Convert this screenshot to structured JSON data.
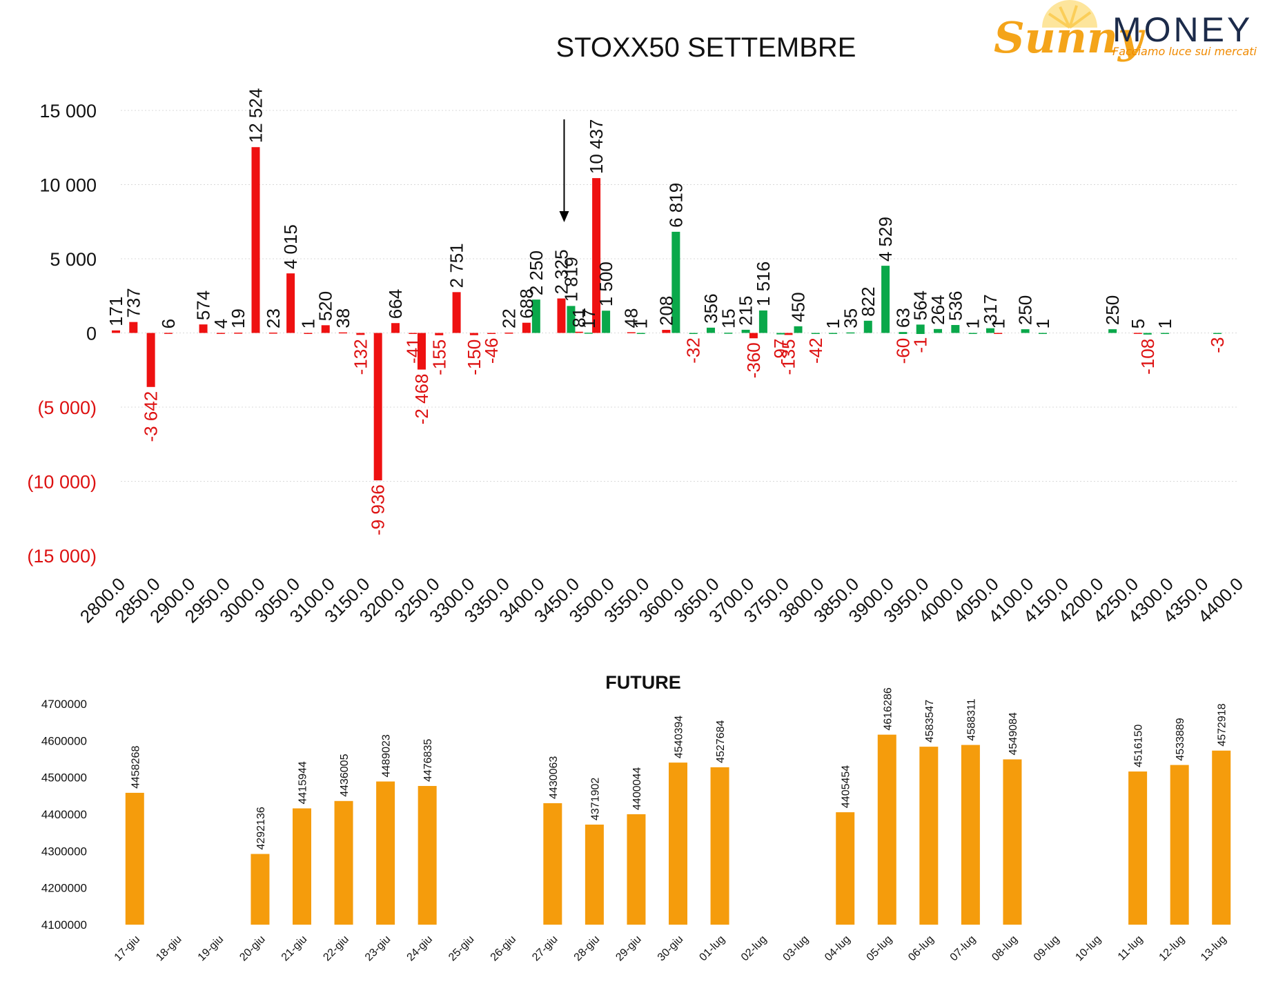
{
  "logo": {
    "brand_part1": "Sunny",
    "brand_part2": "MONEY",
    "tagline": "Facciamo luce sui mercati"
  },
  "colors": {
    "call": "#ee1111",
    "put": "#0aa84a",
    "future": "#f59c0c",
    "negative_text": "#dd1111",
    "text": "#111111"
  },
  "chart_data": [
    {
      "type": "bar",
      "title": "STOXX50 SETTEMBRE",
      "x": [
        2800,
        2825,
        2850,
        2875,
        2900,
        2925,
        2950,
        2975,
        3000,
        3025,
        3050,
        3075,
        3100,
        3125,
        3150,
        3175,
        3200,
        3225,
        3250,
        3275,
        3300,
        3325,
        3350,
        3375,
        3400,
        3425,
        3450,
        3475,
        3500,
        3525,
        3550,
        3575,
        3600,
        3625,
        3650,
        3675,
        3700,
        3725,
        3750,
        3775,
        3800,
        3825,
        3850,
        3875,
        3900,
        3925,
        3950,
        3975,
        4000,
        4025,
        4050,
        4075,
        4100,
        4125,
        4150,
        4175,
        4200,
        4225,
        4250,
        4275,
        4300,
        4325,
        4350,
        4375,
        4400
      ],
      "x_tick_labels": [
        "2800.0",
        "2850.0",
        "2900.0",
        "2950.0",
        "3000.0",
        "3050.0",
        "3100.0",
        "3150.0",
        "3200.0",
        "3250.0",
        "3300.0",
        "3350.0",
        "3400.0",
        "3450.0",
        "3500.0",
        "3550.0",
        "3600.0",
        "3650.0",
        "3700.0",
        "3750.0",
        "3800.0",
        "3850.0",
        "3900.0",
        "3950.0",
        "4000.0",
        "4050.0",
        "4100.0",
        "4150.0",
        "4200.0",
        "4250.0",
        "4300.0",
        "4350.0",
        "4400.0"
      ],
      "ylim": [
        -15000,
        15000
      ],
      "y_ticks": [
        15000,
        10000,
        5000,
        0,
        -5000,
        -10000,
        -15000
      ],
      "y_tick_labels": [
        "15 000",
        "10 000",
        "5 000",
        "0",
        "(5 000)",
        "(10 000)",
        "(15 000)"
      ],
      "grid": true,
      "arrow_at_x": 3437.5,
      "series": [
        {
          "color": "#ee1111",
          "points": [
            {
              "x": 2800,
              "y": 171,
              "label": "171"
            },
            {
              "x": 2825,
              "y": 737,
              "label": "737"
            },
            {
              "x": 2850,
              "y": -3642,
              "label": "-3 642"
            },
            {
              "x": 2875,
              "y": 6,
              "label": "6"
            },
            {
              "x": 2925,
              "y": 574,
              "label": "574"
            },
            {
              "x": 2950,
              "y": 4,
              "label": "4"
            },
            {
              "x": 2975,
              "y": 19,
              "label": "19"
            },
            {
              "x": 3000,
              "y": 12524,
              "label": "12 524"
            },
            {
              "x": 3025,
              "y": 23,
              "label": "23"
            },
            {
              "x": 3050,
              "y": 4015,
              "label": "4 015"
            },
            {
              "x": 3075,
              "y": 1,
              "label": "1"
            },
            {
              "x": 3100,
              "y": 520,
              "label": "520"
            },
            {
              "x": 3125,
              "y": 38,
              "label": "38"
            },
            {
              "x": 3150,
              "y": -132,
              "label": "-132"
            },
            {
              "x": 3175,
              "y": -9936,
              "label": "-9 936"
            },
            {
              "x": 3200,
              "y": 664,
              "label": "664"
            },
            {
              "x": 3225,
              "y": -41,
              "label": "-41"
            },
            {
              "x": 3237.5,
              "y": -2468,
              "label": "-2 468"
            },
            {
              "x": 3262.5,
              "y": -155,
              "label": "-155"
            },
            {
              "x": 3287.5,
              "y": 2751,
              "label": "2 751"
            },
            {
              "x": 3312.5,
              "y": -150,
              "label": "-150"
            },
            {
              "x": 3337.5,
              "y": -46,
              "label": "-46"
            },
            {
              "x": 3362.5,
              "y": 22,
              "label": "22"
            },
            {
              "x": 3387.5,
              "y": 688,
              "label": "688"
            },
            {
              "x": 3437.5,
              "y": 2325,
              "label": "2 325"
            },
            {
              "x": 3462.5,
              "y": 81,
              "label": "81"
            },
            {
              "x": 3487.5,
              "y": 10437,
              "label": "10 437"
            },
            {
              "x": 3537.5,
              "y": 48,
              "label": "48"
            },
            {
              "x": 3587.5,
              "y": 208,
              "label": "208"
            },
            {
              "x": 3712.5,
              "y": -360,
              "label": "-360"
            },
            {
              "x": 3762.5,
              "y": -135,
              "label": "-135"
            },
            {
              "x": 4062.5,
              "y": 1,
              "label": "1"
            },
            {
              "x": 4262.5,
              "y": 5,
              "label": "5"
            }
          ]
        },
        {
          "color": "#0aa84a",
          "points": [
            {
              "x": 3387.5,
              "y": 2250,
              "label": "2 250"
            },
            {
              "x": 3437.5,
              "y": 1819,
              "label": "1 819"
            },
            {
              "x": 3462.5,
              "y": 17,
              "label": "17"
            },
            {
              "x": 3487.5,
              "y": 1500,
              "label": "1 500"
            },
            {
              "x": 3537.5,
              "y": 1,
              "label": "1"
            },
            {
              "x": 3587.5,
              "y": 6819,
              "label": "6 819"
            },
            {
              "x": 3612.5,
              "y": -32,
              "label": "-32"
            },
            {
              "x": 3637.5,
              "y": 356,
              "label": "356"
            },
            {
              "x": 3662.5,
              "y": 15,
              "label": "15"
            },
            {
              "x": 3687.5,
              "y": 215,
              "label": "215"
            },
            {
              "x": 3712.5,
              "y": 1516,
              "label": "1 516"
            },
            {
              "x": 3737.5,
              "y": -97,
              "label": "-97"
            },
            {
              "x": 3762.5,
              "y": 450,
              "label": "450"
            },
            {
              "x": 3787.5,
              "y": -42,
              "label": "-42"
            },
            {
              "x": 3812.5,
              "y": 1,
              "label": "1"
            },
            {
              "x": 3837.5,
              "y": 35,
              "label": "35"
            },
            {
              "x": 3862.5,
              "y": 822,
              "label": "822"
            },
            {
              "x": 3887.5,
              "y": 4529,
              "label": "4 529"
            },
            {
              "x": 3912.5,
              "y": -60,
              "label": "-60"
            },
            {
              "x": 3912.5,
              "y": 63,
              "label": "63"
            },
            {
              "x": 3937.5,
              "y": -1,
              "label": "-1"
            },
            {
              "x": 3937.5,
              "y": 564,
              "label": "564"
            },
            {
              "x": 3962.5,
              "y": 264,
              "label": "264"
            },
            {
              "x": 3987.5,
              "y": 536,
              "label": "536"
            },
            {
              "x": 4012.5,
              "y": 1,
              "label": "1"
            },
            {
              "x": 4037.5,
              "y": 317,
              "label": "317"
            },
            {
              "x": 4087.5,
              "y": 250,
              "label": "250"
            },
            {
              "x": 4112.5,
              "y": 1,
              "label": "1"
            },
            {
              "x": 4212.5,
              "y": 250,
              "label": "250"
            },
            {
              "x": 4262.5,
              "y": -108,
              "label": "-108"
            },
            {
              "x": 4287.5,
              "y": 1,
              "label": "1"
            },
            {
              "x": 4362.5,
              "y": -3,
              "label": "-3"
            }
          ]
        }
      ]
    },
    {
      "type": "bar",
      "title": "FUTURE",
      "categories": [
        "17-giu",
        "18-giu",
        "19-giu",
        "20-giu",
        "21-giu",
        "22-giu",
        "23-giu",
        "24-giu",
        "25-giu",
        "26-giu",
        "27-giu",
        "28-giu",
        "29-giu",
        "30-giu",
        "01-lug",
        "02-lug",
        "03-lug",
        "04-lug",
        "05-lug",
        "06-lug",
        "07-lug",
        "08-lug",
        "09-lug",
        "10-lug",
        "11-lug",
        "12-lug",
        "13-lug"
      ],
      "values": [
        4458268,
        null,
        null,
        4292136,
        4415944,
        4436005,
        4489023,
        4476835,
        null,
        null,
        4430063,
        4371902,
        4400044,
        4540394,
        4527684,
        null,
        null,
        4405454,
        4616286,
        4583547,
        4588311,
        4549084,
        null,
        null,
        4516150,
        4533889,
        4572918
      ],
      "value_labels": [
        "4458268",
        "",
        "",
        "4292136",
        "4415944",
        "4436005",
        "4489023",
        "4476835",
        "",
        "",
        "4430063",
        "4371902",
        "4400044",
        "4540394",
        "4527684",
        "",
        "",
        "4405454",
        "4616286",
        "4583547",
        "4588311",
        "4549084",
        "",
        "",
        "4516150",
        "4533889",
        "4572918"
      ],
      "ylim": [
        4100000,
        4700000
      ],
      "y_ticks": [
        4700000,
        4600000,
        4500000,
        4400000,
        4300000,
        4200000,
        4100000
      ],
      "y_tick_labels": [
        "4700000",
        "4600000",
        "4500000",
        "4400000",
        "4300000",
        "4200000",
        "4100000"
      ],
      "color": "#f59c0c",
      "grid": false
    }
  ]
}
